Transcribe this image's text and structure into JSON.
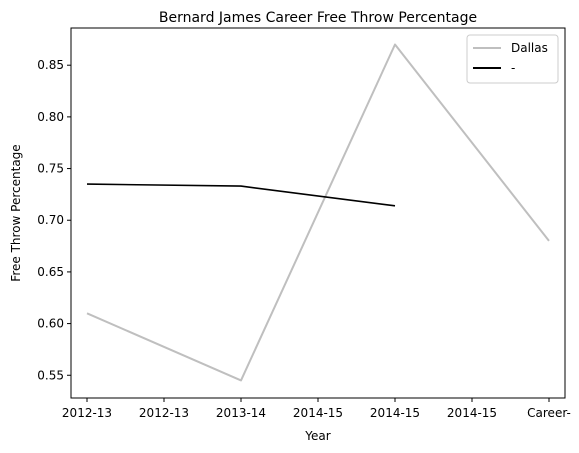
{
  "chart_data": {
    "type": "line",
    "title": "Bernard James Career Free Throw Percentage",
    "xlabel": "Year",
    "ylabel": "Free Throw Percentage",
    "categories": [
      "2012-13",
      "2012-13",
      "2013-14",
      "2014-15",
      "2014-15",
      "2014-15",
      "Career-"
    ],
    "ylim": [
      0.528,
      0.886
    ],
    "yticks": [
      "0.55",
      "0.60",
      "0.65",
      "0.70",
      "0.75",
      "0.80",
      "0.85"
    ],
    "grid": false,
    "legend_position": "top-right",
    "series": [
      {
        "name": "Dallas",
        "color": "#bfbfbf",
        "points": [
          [
            0,
            0.61
          ],
          [
            2,
            0.545
          ],
          [
            4,
            0.87
          ],
          [
            6,
            0.68
          ]
        ]
      },
      {
        "name": "-",
        "color": "#000000",
        "points": [
          [
            0,
            0.735
          ],
          [
            2,
            0.733
          ],
          [
            4,
            0.714
          ]
        ]
      }
    ]
  }
}
